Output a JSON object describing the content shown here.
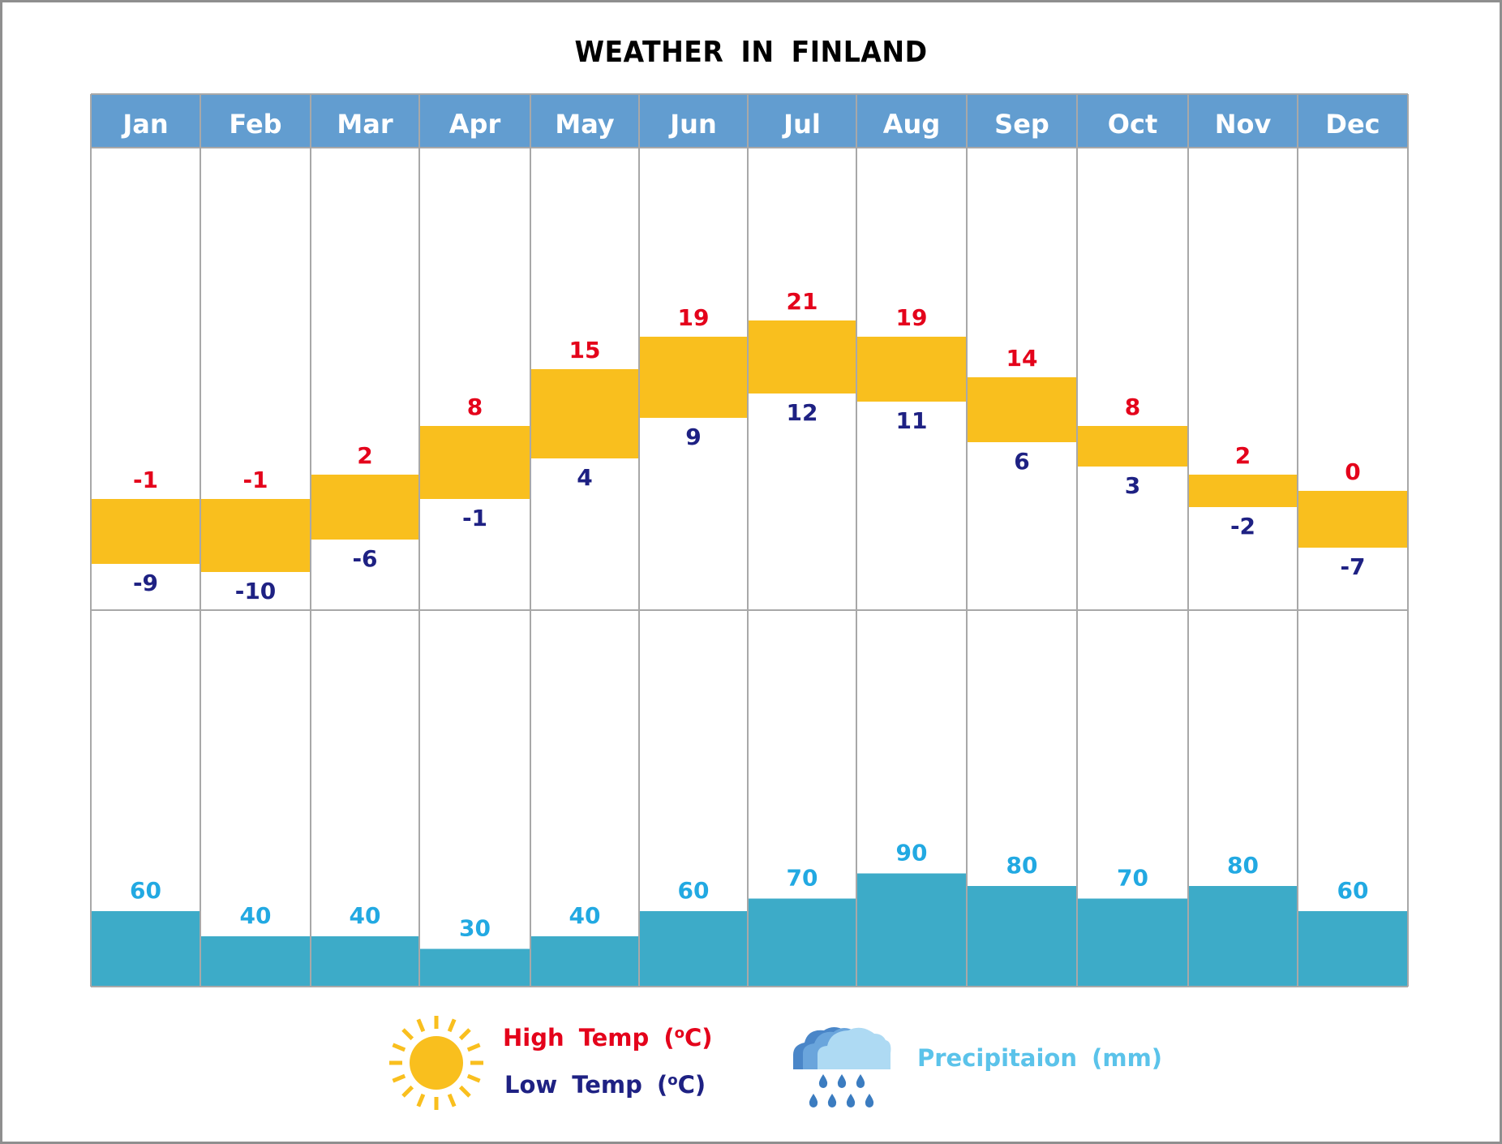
{
  "title": "WEATHER  IN  FINLAND",
  "colors": {
    "header": "#629dd0",
    "temp_band": "#f9bf1e",
    "precip_bar": "#3dabc8",
    "high": "#e4021b",
    "low": "#1e2183",
    "precip_label": "#22a9e2",
    "grid": "#a8a8a8"
  },
  "legend": {
    "high_label": "High  Temp  (",
    "low_label": "Low  Temp  (",
    "unit_sup": "o",
    "unit_tail": "C)",
    "precip_label": "Precipitaion  (mm)",
    "sun_icon": "sun-icon",
    "rain_icon": "rain-cloud-icon"
  },
  "chart_data": {
    "type": "bar",
    "title": "WEATHER IN FINLAND",
    "categories": [
      "Jan",
      "Feb",
      "Mar",
      "Apr",
      "May",
      "Jun",
      "Jul",
      "Aug",
      "Sep",
      "Oct",
      "Nov",
      "Dec"
    ],
    "series": [
      {
        "name": "High Temp (°C)",
        "values": [
          -1,
          -1,
          2,
          8,
          15,
          19,
          21,
          19,
          14,
          8,
          2,
          0
        ]
      },
      {
        "name": "Low Temp (°C)",
        "values": [
          -9,
          -10,
          -6,
          -1,
          4,
          9,
          12,
          11,
          6,
          3,
          -2,
          -7
        ]
      },
      {
        "name": "Precipitaion (mm)",
        "values": [
          60,
          40,
          40,
          30,
          40,
          60,
          70,
          90,
          80,
          70,
          80,
          60
        ]
      }
    ],
    "temp_range": [
      -15,
      30
    ],
    "precip_range": [
      0,
      100
    ],
    "legend_position": "bottom",
    "grid": true
  }
}
